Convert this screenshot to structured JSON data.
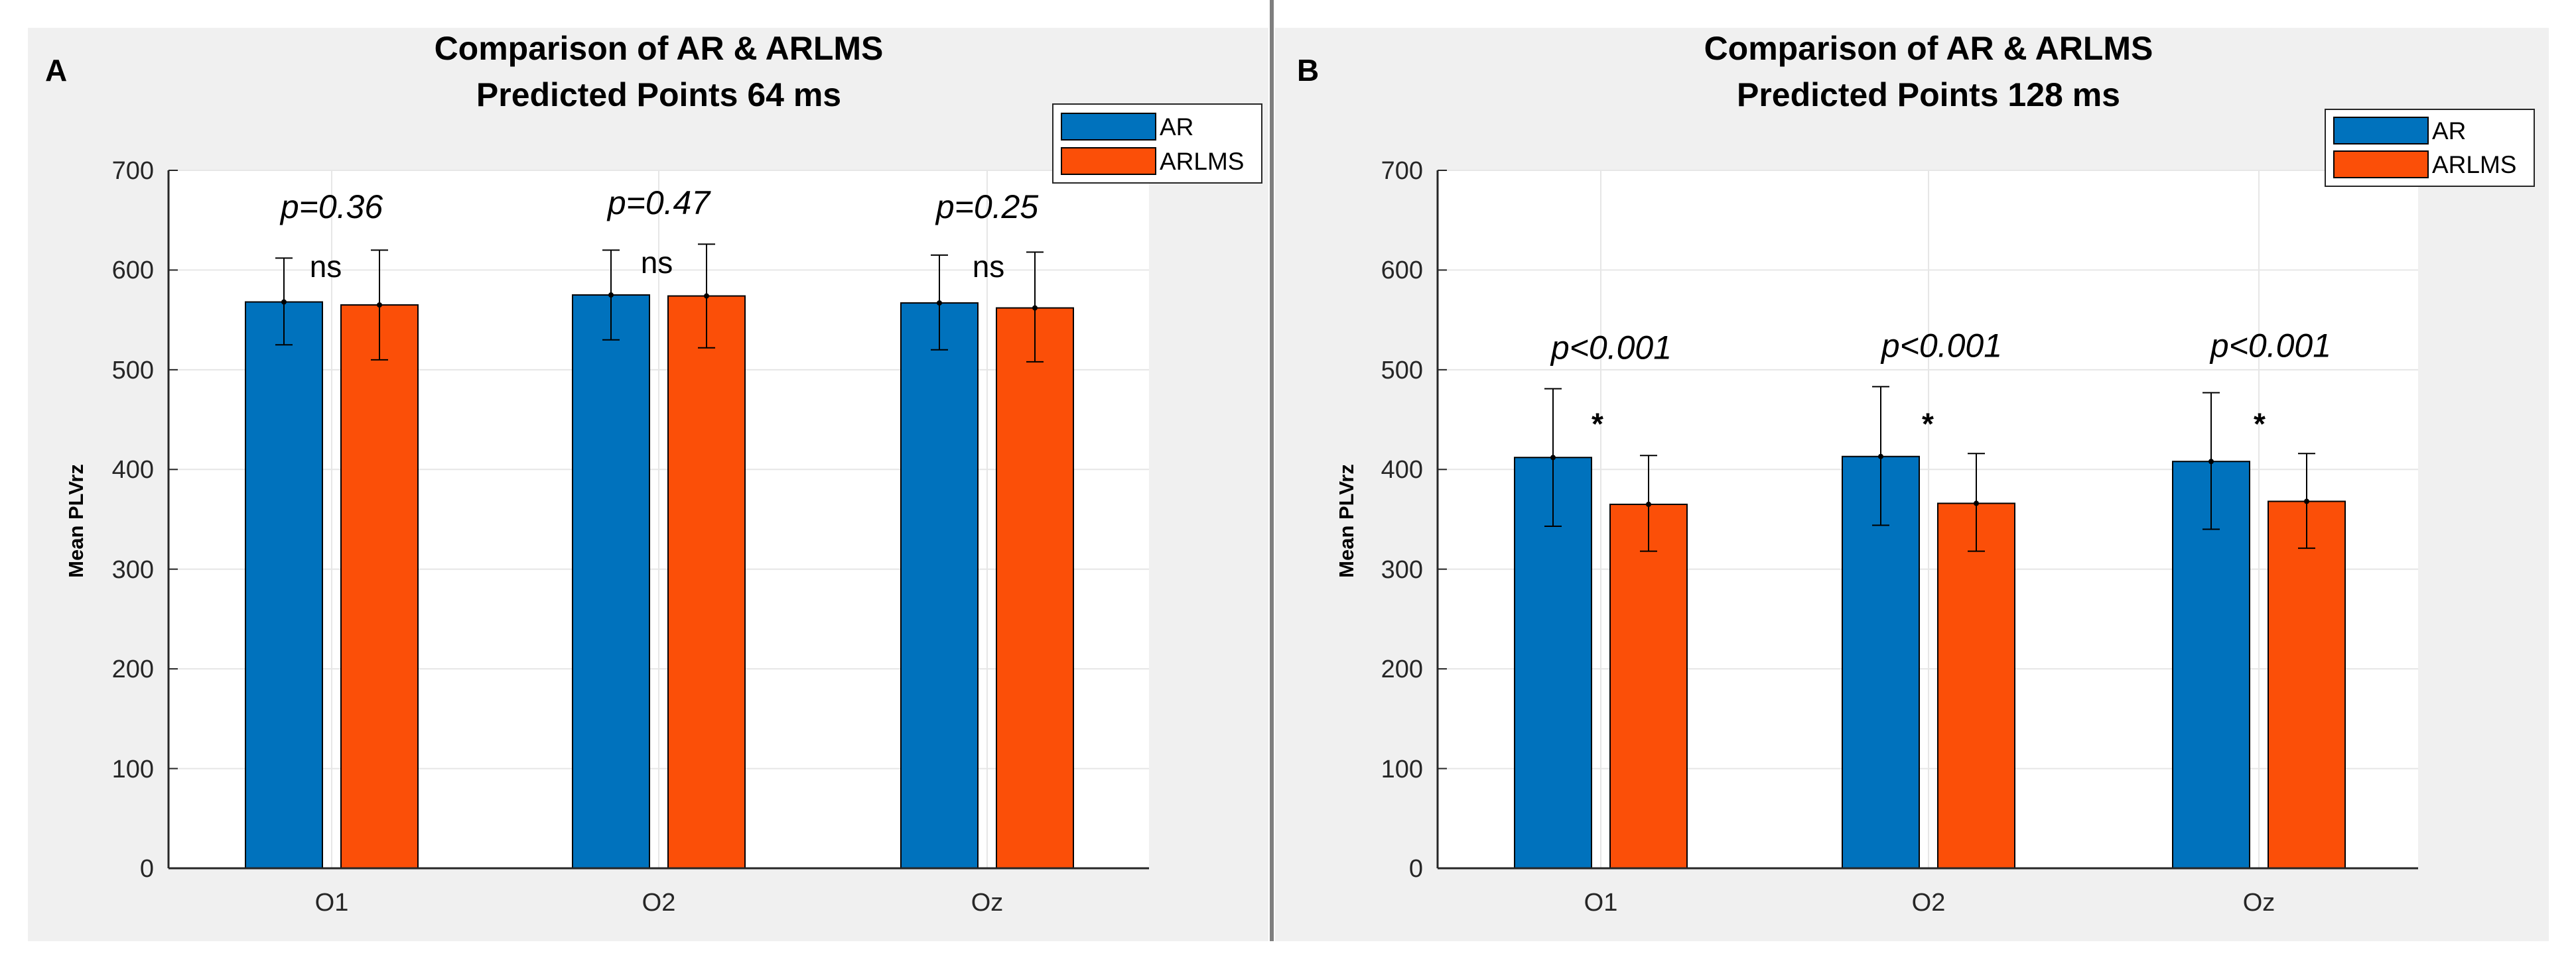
{
  "colors": {
    "background": "#f0f0f0",
    "axes_background": "#ffffff",
    "grid": "#e6e6e6",
    "divider": "#7f7f7f",
    "ar": "#0072bd",
    "arlms": "#fb4f08",
    "text": "#262626"
  },
  "chart_data": [
    {
      "panel_label": "A",
      "type": "bar",
      "title": "Comparison of AR & ARLMS",
      "subtitle": "Predicted Points 64 ms",
      "xlabel": "",
      "ylabel": "Mean PLVrz",
      "ylim": [
        0,
        700
      ],
      "yticks": [
        "0",
        "100",
        "200",
        "300",
        "400",
        "500",
        "600",
        "700"
      ],
      "categories": [
        "O1",
        "O2",
        "Oz"
      ],
      "grid": true,
      "legend_position": "top-right",
      "series": [
        {
          "name": "AR",
          "color": "#0072bd",
          "values": [
            568,
            575,
            567
          ],
          "err_low": [
            525,
            530,
            520
          ],
          "err_high": [
            612,
            620,
            615
          ]
        },
        {
          "name": "ARLMS",
          "color": "#fb4f08",
          "values": [
            565,
            574,
            562
          ],
          "err_low": [
            510,
            522,
            508
          ],
          "err_high": [
            620,
            626,
            618
          ]
        }
      ],
      "annotations": [
        {
          "p_text": "p=0.36",
          "sig_text": "ns",
          "p_level": 652,
          "sig_level": 593
        },
        {
          "p_text": "p=0.47",
          "sig_text": "ns",
          "p_level": 656,
          "sig_level": 597
        },
        {
          "p_text": "p=0.25",
          "sig_text": "ns",
          "p_level": 652,
          "sig_level": 593
        }
      ]
    },
    {
      "panel_label": "B",
      "type": "bar",
      "title": "Comparison of AR & ARLMS",
      "subtitle": "Predicted Points 128 ms",
      "xlabel": "",
      "ylabel": "Mean PLVrz",
      "ylim": [
        0,
        700
      ],
      "yticks": [
        "0",
        "100",
        "200",
        "300",
        "400",
        "500",
        "600",
        "700"
      ],
      "categories": [
        "O1",
        "O2",
        "Oz"
      ],
      "grid": true,
      "legend_position": "top-right",
      "series": [
        {
          "name": "AR",
          "color": "#0072bd",
          "values": [
            412,
            413,
            408
          ],
          "err_low": [
            343,
            344,
            340
          ],
          "err_high": [
            481,
            483,
            477
          ]
        },
        {
          "name": "ARLMS",
          "color": "#fb4f08",
          "values": [
            365,
            366,
            368
          ],
          "err_low": [
            318,
            318,
            321
          ],
          "err_high": [
            414,
            416,
            416
          ]
        }
      ],
      "annotations": [
        {
          "p_text": "p<0.001",
          "sig_text": "*",
          "p_level": 511,
          "sig_level": 435
        },
        {
          "p_text": "p<0.001",
          "sig_text": "*",
          "p_level": 513,
          "sig_level": 435
        },
        {
          "p_text": "p<0.001",
          "sig_text": "*",
          "p_level": 513,
          "sig_level": 435
        }
      ]
    }
  ]
}
